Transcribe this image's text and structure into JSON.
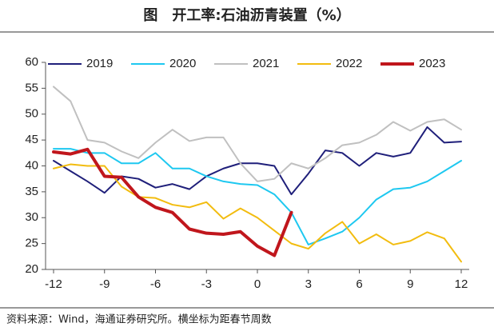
{
  "chart_data": {
    "type": "line",
    "title": "图　开工率:石油沥青装置（%）",
    "source": "资料来源：Wind，海通证券研究所。横坐标为距春节周数",
    "x": [
      -12,
      -11,
      -10,
      -9,
      -8,
      -7,
      -6,
      -5,
      -4,
      -3,
      -2,
      -1,
      0,
      1,
      2,
      3,
      4,
      5,
      6,
      7,
      8,
      9,
      10,
      11,
      12
    ],
    "series": [
      {
        "name": "2019",
        "color": "#1f1f7a",
        "width": 2,
        "values": [
          41,
          39,
          37,
          34.8,
          38,
          37.5,
          35.8,
          36.5,
          35.5,
          38,
          39.5,
          40.5,
          40.5,
          40,
          34.5,
          38.5,
          43,
          42.5,
          40,
          42.5,
          41.8,
          42.5,
          47.5,
          44.5,
          44.7
        ]
      },
      {
        "name": "2020",
        "color": "#1ec8f0",
        "width": 2,
        "values": [
          43.3,
          43.3,
          42.5,
          42.5,
          40.5,
          40.5,
          42.5,
          39.5,
          39.5,
          38,
          37,
          36.5,
          36.3,
          34.5,
          31,
          24.8,
          26,
          27.3,
          30,
          33.5,
          35.5,
          35.8,
          37,
          39,
          41
        ]
      },
      {
        "name": "2021",
        "color": "#c0c0c0",
        "width": 2,
        "values": [
          55.3,
          52.5,
          45,
          44.5,
          42.8,
          41.5,
          44.5,
          47,
          44.8,
          45.5,
          45.5,
          40.5,
          37,
          37.5,
          40.5,
          39.5,
          41.5,
          44,
          44.5,
          46,
          48.5,
          46.8,
          48.5,
          49,
          47
        ]
      },
      {
        "name": "2022",
        "color": "#f2bc0f",
        "width": 2,
        "values": [
          39.5,
          40.3,
          40,
          40,
          36,
          34,
          33.8,
          32.5,
          32,
          33,
          29.8,
          31.8,
          30,
          27.5,
          25,
          24,
          27,
          29.2,
          25,
          26.8,
          24.8,
          25.5,
          27.2,
          26,
          21.5
        ]
      },
      {
        "name": "2023",
        "color": "#c0161c",
        "width": 4,
        "values": [
          42.7,
          42.3,
          43.2,
          38,
          37.8,
          34,
          32,
          31,
          27.8,
          27,
          26.8,
          27.3,
          24.5,
          22.7,
          31,
          null,
          null,
          null,
          null,
          null,
          null,
          null,
          null,
          null,
          null
        ]
      }
    ],
    "xlim": [
      -12,
      12
    ],
    "xticks": [
      -12,
      -9,
      -6,
      -3,
      0,
      3,
      6,
      9,
      12
    ],
    "ylim": [
      20,
      60
    ],
    "yticks": [
      20,
      25,
      30,
      35,
      40,
      45,
      50,
      55,
      60
    ],
    "legend": "top"
  }
}
